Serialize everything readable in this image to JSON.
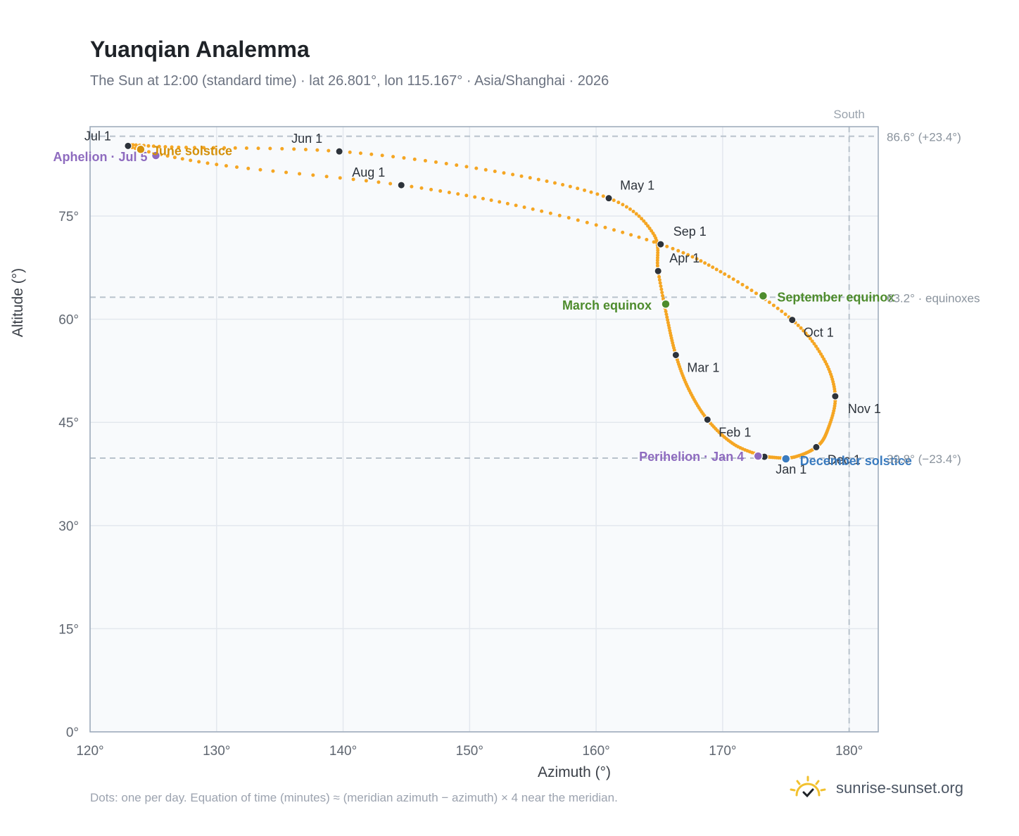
{
  "header": {
    "title": "Yuanqian Analemma",
    "subtitle": "The Sun at 12:00 (standard time) · lat 26.801°, lon 115.167° · Asia/Shanghai · 2026"
  },
  "footer": {
    "note": "Dots: one per day. Equation of time (minutes) ≈ (meridian azimuth − azimuth) × 4 near the meridian.",
    "brand": "sunrise-sunset.org",
    "logo_icon": "sun-logo-icon"
  },
  "colors": {
    "curve": "#f5a623",
    "month_dot": "#2d333b",
    "aphelion": "#8e6bbf",
    "june_solstice": "#d4900a",
    "equinox": "#4e8c2d",
    "december_solstice": "#3a7bbf",
    "reference_line": "#b8c2cc",
    "plot_bg": "#f8fafc"
  },
  "chart_data": {
    "type": "scatter",
    "title": "Yuanqian Analemma",
    "xlabel": "Azimuth (°)",
    "ylabel": "Altitude (°)",
    "xlim": [
      120,
      182.3
    ],
    "ylim": [
      0,
      88
    ],
    "x_ticks": [
      120,
      130,
      140,
      150,
      160,
      170,
      180
    ],
    "x_tick_labels": [
      "120°",
      "130°",
      "140°",
      "150°",
      "160°",
      "170°",
      "180°"
    ],
    "y_ticks": [
      0,
      15,
      30,
      45,
      60,
      75
    ],
    "y_tick_labels": [
      "0°",
      "15°",
      "30°",
      "45°",
      "60°",
      "75°"
    ],
    "grid": true,
    "meridian": {
      "azimuth": 180,
      "label": "South"
    },
    "reference_lines": [
      {
        "altitude": 86.6,
        "label": "86.6° (+23.4°)"
      },
      {
        "altitude": 63.2,
        "label": "63.2° · equinoxes"
      },
      {
        "altitude": 39.8,
        "label": "39.8° (−23.4°)"
      }
    ],
    "month_points": [
      {
        "label": "Jan 1",
        "az": 173.3,
        "alt": 40.0
      },
      {
        "label": "Feb 1",
        "az": 168.8,
        "alt": 45.4
      },
      {
        "label": "Mar 1",
        "az": 166.3,
        "alt": 54.8
      },
      {
        "label": "Apr 1",
        "az": 164.9,
        "alt": 67.0
      },
      {
        "label": "May 1",
        "az": 161.0,
        "alt": 77.6
      },
      {
        "label": "Jun 1",
        "az": 139.7,
        "alt": 84.4
      },
      {
        "label": "Jul 1",
        "az": 123.0,
        "alt": 85.2
      },
      {
        "label": "Aug 1",
        "az": 144.6,
        "alt": 79.5
      },
      {
        "label": "Sep 1",
        "az": 165.1,
        "alt": 70.9
      },
      {
        "label": "Oct 1",
        "az": 175.5,
        "alt": 59.9
      },
      {
        "label": "Nov 1",
        "az": 178.9,
        "alt": 48.8
      },
      {
        "label": "Dec 1",
        "az": 177.4,
        "alt": 41.4
      }
    ],
    "events": [
      {
        "label": "Aphelion · Jul 5",
        "az": 125.2,
        "alt": 83.8,
        "color": "#8e6bbf"
      },
      {
        "label": "June solstice",
        "az": 124.0,
        "alt": 84.7,
        "color": "#d4900a"
      },
      {
        "label": "March equinox",
        "az": 165.5,
        "alt": 62.2,
        "color": "#4e8c2d"
      },
      {
        "label": "September equinox",
        "az": 173.2,
        "alt": 63.4,
        "color": "#4e8c2d"
      },
      {
        "label": "Perihelion · Jan 4",
        "az": 172.8,
        "alt": 40.1,
        "color": "#8e6bbf"
      },
      {
        "label": "December solstice",
        "az": 175.0,
        "alt": 39.7,
        "color": "#3a7bbf"
      }
    ],
    "curve_anchors": [
      {
        "date": "Jan 1",
        "az": 173.3,
        "alt": 40.0
      },
      {
        "date": "Jan 15",
        "az": 170.9,
        "alt": 41.8
      },
      {
        "date": "Feb 1",
        "az": 168.8,
        "alt": 45.4
      },
      {
        "date": "Feb 15",
        "az": 167.3,
        "alt": 49.9
      },
      {
        "date": "Mar 1",
        "az": 166.3,
        "alt": 54.8
      },
      {
        "date": "Mar 15",
        "az": 165.6,
        "alt": 60.3
      },
      {
        "date": "Apr 1",
        "az": 164.9,
        "alt": 67.0
      },
      {
        "date": "Apr 15",
        "az": 164.5,
        "alt": 72.5
      },
      {
        "date": "May 1",
        "az": 161.0,
        "alt": 77.6
      },
      {
        "date": "May 15",
        "az": 152.0,
        "alt": 81.5
      },
      {
        "date": "Jun 1",
        "az": 139.7,
        "alt": 84.4
      },
      {
        "date": "Jun 15",
        "az": 127.0,
        "alt": 85.0
      },
      {
        "date": "Jul 1",
        "az": 123.0,
        "alt": 85.2
      },
      {
        "date": "Jul 15",
        "az": 130.0,
        "alt": 82.5
      },
      {
        "date": "Aug 1",
        "az": 144.6,
        "alt": 79.5
      },
      {
        "date": "Aug 15",
        "az": 155.0,
        "alt": 76.0
      },
      {
        "date": "Sep 1",
        "az": 165.1,
        "alt": 70.9
      },
      {
        "date": "Sep 15",
        "az": 170.5,
        "alt": 66.2
      },
      {
        "date": "Oct 1",
        "az": 175.5,
        "alt": 59.9
      },
      {
        "date": "Oct 15",
        "az": 178.0,
        "alt": 54.2
      },
      {
        "date": "Nov 1",
        "az": 178.9,
        "alt": 48.8
      },
      {
        "date": "Nov 15",
        "az": 178.3,
        "alt": 43.9
      },
      {
        "date": "Dec 1",
        "az": 177.4,
        "alt": 41.4
      },
      {
        "date": "Dec 15",
        "az": 175.5,
        "alt": 39.9
      },
      {
        "date": "Dec 31",
        "az": 173.4,
        "alt": 40.0
      }
    ]
  }
}
